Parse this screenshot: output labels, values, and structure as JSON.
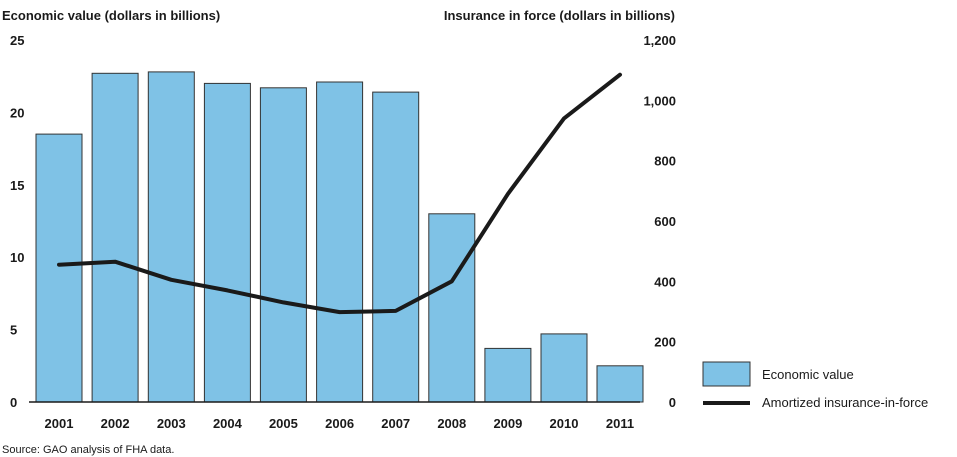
{
  "chart_data": {
    "type": "bar",
    "categories": [
      "2001",
      "2002",
      "2003",
      "2004",
      "2005",
      "2006",
      "2007",
      "2008",
      "2009",
      "2010",
      "2011"
    ],
    "series": [
      {
        "name": "Economic value",
        "type": "bar",
        "axis": "left",
        "color": "#7fc2e6",
        "values": [
          18.5,
          22.7,
          22.8,
          22.0,
          21.7,
          22.1,
          21.4,
          13.0,
          3.7,
          4.7,
          2.5
        ]
      },
      {
        "name": "Amortized insurance-in-force",
        "type": "line",
        "axis": "right",
        "color": "#1a1a1a",
        "values": [
          455,
          465,
          405,
          370,
          330,
          298,
          302,
          400,
          690,
          940,
          1085
        ]
      }
    ],
    "ylabel_left": "Economic value (dollars in billions)",
    "ylabel_right": "Insurance in force (dollars in billions)",
    "ylim_left": [
      0,
      25
    ],
    "ylim_right": [
      0,
      1200
    ],
    "yticks_left": [
      0,
      5,
      10,
      15,
      20,
      25
    ],
    "yticks_right": [
      "0",
      "200",
      "400",
      "600",
      "800",
      "1,000",
      "1,200"
    ],
    "legend": [
      "Economic value",
      "Amortized insurance-in-force"
    ],
    "legend_position": "bottom-right",
    "grid": false,
    "source_note": "Source: GAO analysis of FHA data."
  }
}
